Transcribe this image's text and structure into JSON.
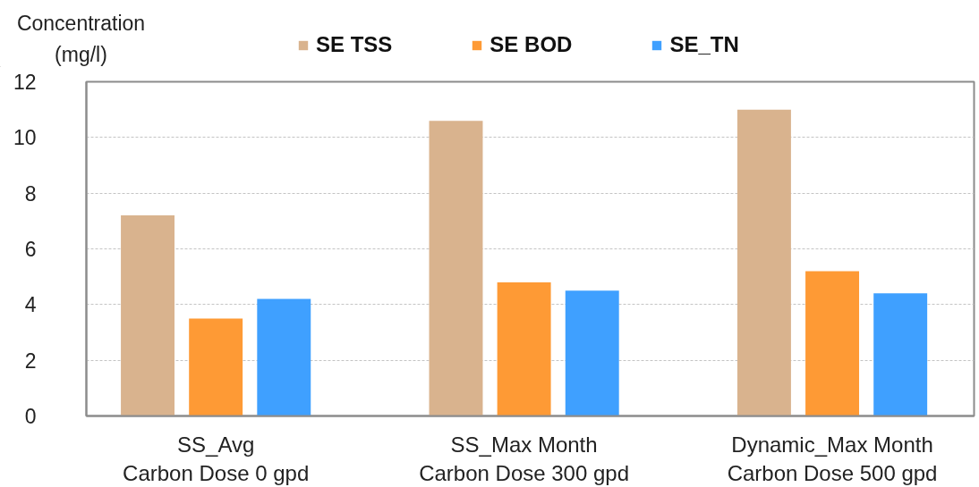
{
  "chart_data": {
    "type": "bar",
    "ylabel": "Concentration\n(mg/l)",
    "categories": [
      "SS_Avg\nCarbon Dose 0 gpd",
      "SS_Max Month\nCarbon Dose 300 gpd",
      "Dynamic_Max Month\nCarbon Dose 500 gpd"
    ],
    "series": [
      {
        "name": "SE TSS",
        "color": "#d9b38e",
        "values": [
          7.2,
          10.6,
          11.0
        ]
      },
      {
        "name": "SE BOD",
        "color": "#fe9a35",
        "values": [
          3.5,
          4.8,
          5.2
        ]
      },
      {
        "name": "SE_TN",
        "color": "#3fa0ff",
        "values": [
          4.2,
          4.5,
          4.4
        ]
      }
    ],
    "ylim": [
      0,
      12
    ],
    "yticks": [
      0,
      2,
      4,
      6,
      8,
      10,
      12
    ],
    "grid": "y",
    "legend": "top"
  }
}
